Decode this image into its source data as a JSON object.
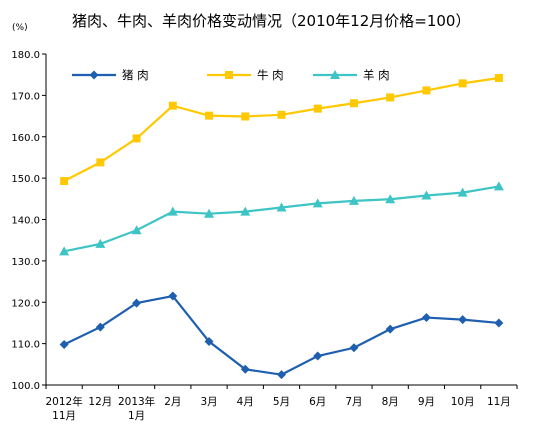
{
  "chart_data": {
    "type": "line",
    "title": "猪肉、牛肉、羊肉价格变动情况（2010年12月价格=100）",
    "unit": "(%)",
    "ylim": [
      100,
      180
    ],
    "yticks": [
      "100.0",
      "110.0",
      "120.0",
      "130.0",
      "140.0",
      "150.0",
      "160.0",
      "170.0",
      "180.0"
    ],
    "categories": [
      "2012年\n11月",
      "12月",
      "2013年\n1月",
      "2月",
      "3月",
      "4月",
      "5月",
      "6月",
      "7月",
      "8月",
      "9月",
      "10月",
      "11月"
    ],
    "grid": false,
    "legend": "top-left",
    "series": [
      {
        "name": "猪  肉",
        "color": "#1F5FB0",
        "marker": "diamond",
        "values": [
          109.8,
          114.0,
          119.8,
          121.5,
          110.5,
          103.8,
          102.5,
          107.0,
          109.0,
          113.5,
          116.3,
          115.8,
          115.0
        ]
      },
      {
        "name": "牛  肉",
        "color": "#FFC800",
        "marker": "square",
        "values": [
          149.3,
          153.8,
          159.6,
          167.5,
          165.1,
          164.9,
          165.3,
          166.8,
          168.1,
          169.5,
          171.2,
          172.9,
          174.2
        ]
      },
      {
        "name": "羊  肉",
        "color": "#3EC4C4",
        "marker": "triangle",
        "values": [
          132.3,
          134.1,
          137.4,
          141.9,
          141.4,
          141.9,
          142.9,
          143.9,
          144.5,
          144.9,
          145.8,
          146.5,
          148.0
        ]
      }
    ]
  }
}
